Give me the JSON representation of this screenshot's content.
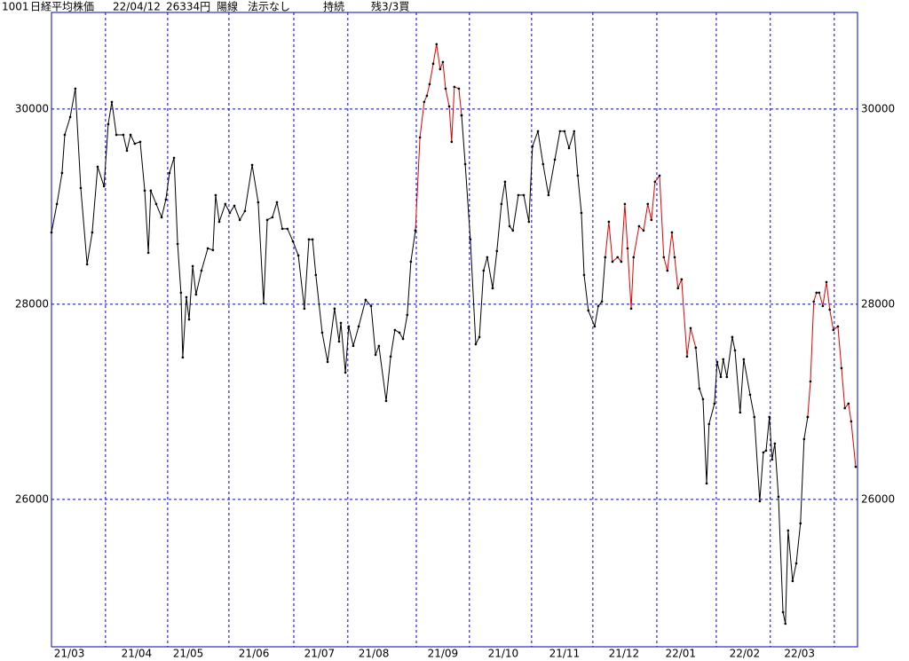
{
  "header": {
    "code": "1001",
    "name": "日経平均株価",
    "date": "22/04/12",
    "price": "26334円",
    "candle": "陽線",
    "signal": "法示なし",
    "state": "持続",
    "position": "残3/3買"
  },
  "chart_data": {
    "type": "line",
    "grid": true,
    "grid_color": "#0000c8",
    "frame_color": "#0000c8",
    "marker_color": "#000000",
    "ylim": [
      24490,
      30990
    ],
    "yticks": [
      26000,
      28000,
      30000
    ],
    "xlim": [
      0,
      267.1
    ],
    "xticks": [
      17.9,
      38.5,
      58.8,
      80.3,
      98.2,
      120.9,
      138.5,
      159.1,
      179.4,
      200.6,
      220.3,
      238.2,
      259.4
    ],
    "xlabels": [
      {
        "value": 5.9,
        "label": "21/03"
      },
      {
        "value": 28.2,
        "label": "21/04"
      },
      {
        "value": 45.3,
        "label": "21/05"
      },
      {
        "value": 67.1,
        "label": "21/06"
      },
      {
        "value": 88.8,
        "label": "21/07"
      },
      {
        "value": 106.8,
        "label": "21/08"
      },
      {
        "value": 129.7,
        "label": "21/09"
      },
      {
        "value": 149.7,
        "label": "21/10"
      },
      {
        "value": 170,
        "label": "21/11"
      },
      {
        "value": 189.7,
        "label": "21/12"
      },
      {
        "value": 208.5,
        "label": "22/01"
      },
      {
        "value": 229.7,
        "label": "22/02"
      },
      {
        "value": 247.9,
        "label": "22/03"
      }
    ],
    "series": [
      {
        "color": "#000000",
        "x": [
          0,
          1.8,
          3.5,
          4.4,
          6.2,
          7.9,
          9.7,
          11.8,
          13.5,
          15.3,
          17.4,
          18.8,
          20,
          21.5,
          23.8,
          25,
          26.2,
          27.6,
          29.4,
          30.9,
          32.1,
          32.9,
          34.7,
          36.5,
          37.9,
          39.1,
          40.6,
          41.8,
          42.9,
          43.5,
          44.7,
          45.6,
          46.8,
          47.9,
          49.7,
          51.8,
          53.5,
          54.4,
          55.6,
          57.6,
          59.1,
          60.6,
          62.4,
          64.1,
          66.5,
          68.5,
          70.3,
          71.5,
          73.2,
          74.7,
          76.5,
          78.2,
          80,
          81.8,
          83.8,
          85.3,
          86.5,
          87.6,
          89.7,
          91.5,
          93.8,
          95.3,
          95.9,
          97.4,
          98.5,
          100,
          101.8,
          104.1,
          105.9,
          107.4,
          108.5,
          110.9,
          112.4,
          113.8,
          115.3,
          116.5,
          117.9,
          119.1,
          120.6
        ],
        "values": [
          28736,
          29027,
          29345,
          29736,
          29918,
          30209,
          29191,
          28409,
          28736,
          29409,
          29209,
          29845,
          30073,
          29736,
          29736,
          29573,
          29736,
          29645,
          29664,
          29164,
          28527,
          29164,
          29027,
          28891,
          29073,
          29345,
          29500,
          28618,
          28118,
          27455,
          28073,
          27845,
          28391,
          28100,
          28345,
          28573,
          28555,
          29118,
          28845,
          29027,
          28936,
          29009,
          28864,
          28955,
          29427,
          29045,
          28009,
          28864,
          28891,
          29045,
          28773,
          28773,
          28645,
          28500,
          27955,
          28664,
          28664,
          28300,
          27709,
          27409,
          27955,
          27618,
          27809,
          27300,
          27773,
          27573,
          27773,
          28045,
          27982,
          27482,
          27573,
          27009,
          27464,
          27736,
          27709,
          27645,
          27891,
          28436,
          28755
        ]
      },
      {
        "color": "#e00000",
        "x": [
          120.6,
          122.1,
          123.5,
          124.4,
          125.3,
          126.5,
          127.6,
          128.8,
          129.7,
          130.6,
          131.8,
          132.6,
          133.5,
          135,
          135.9
        ],
        "values": [
          28755,
          29709,
          30073,
          30136,
          30255,
          30464,
          30664,
          30409,
          30482,
          30209,
          30027,
          29664,
          30227,
          30209,
          29936
        ]
      },
      {
        "color": "#000000",
        "x": [
          135.9,
          137.1,
          138.8,
          140.6,
          141.8,
          143.2,
          144.4,
          146.2,
          147.6,
          149.1,
          150.3,
          151.8,
          152.9,
          154.7,
          156.5,
          158.2,
          159.4,
          161.2,
          162.9,
          164.7,
          166.8,
          168.5,
          170,
          171.5,
          173.2,
          174.4,
          175.6,
          176.5,
          177.9,
          180,
          181.2,
          182.4,
          183.5
        ],
        "values": [
          29936,
          29436,
          28664,
          27591,
          27664,
          28345,
          28482,
          28164,
          28545,
          29027,
          29255,
          28800,
          28755,
          29118,
          29118,
          28845,
          29618,
          29773,
          29436,
          29118,
          29482,
          29773,
          29773,
          29600,
          29773,
          29318,
          28936,
          28300,
          27936,
          27773,
          27982,
          28027,
          28482
        ]
      },
      {
        "color": "#e00000",
        "x": [
          183.5,
          184.7,
          185.9,
          187.6,
          188.8,
          190,
          190.9,
          192.1,
          192.9,
          194.7,
          196.2,
          197.6,
          198.8,
          200,
          201.5,
          202.9,
          204.1,
          205.6,
          206.5,
          207.6,
          208.8,
          210.6,
          211.8,
          213.5
        ],
        "values": [
          28482,
          28845,
          28436,
          28482,
          28436,
          29027,
          28573,
          27955,
          28482,
          28800,
          28755,
          29027,
          28864,
          29255,
          29318,
          28482,
          28345,
          28736,
          28482,
          28164,
          28255,
          27464,
          27755,
          27555
        ]
      },
      {
        "color": "#000000",
        "x": [
          213.5,
          214.7,
          215.9,
          217.1,
          217.9,
          219.7,
          220.6,
          221.8,
          222.6,
          223.8,
          225.6,
          226.5,
          228.2,
          229.4,
          231.5,
          232.9,
          234.7,
          235.9,
          236.8,
          237.9,
          238.8,
          239.7,
          240.9,
          242.4,
          243.2,
          244.1,
          245.6,
          246.8,
          248.2,
          249.4,
          250.6
        ],
        "values": [
          27555,
          27136,
          27027,
          26164,
          26773,
          26982,
          27409,
          27255,
          27436,
          27255,
          27664,
          27527,
          26891,
          27436,
          27073,
          26845,
          25982,
          26482,
          26500,
          26845,
          26409,
          26573,
          26027,
          24845,
          24727,
          25682,
          25164,
          25345,
          25755,
          26618,
          26845
        ]
      },
      {
        "color": "#e00000",
        "x": [
          250.6,
          251.5,
          252.6,
          253.5,
          254.4,
          255.6,
          256.8,
          257.9,
          259.1,
          260.6,
          261.8,
          262.9,
          264.1,
          265,
          266.5
        ],
        "values": [
          26845,
          27209,
          28027,
          28118,
          28118,
          27982,
          28227,
          27945,
          27736,
          27773,
          27345,
          26936,
          26982,
          26800,
          26334
        ]
      }
    ]
  }
}
